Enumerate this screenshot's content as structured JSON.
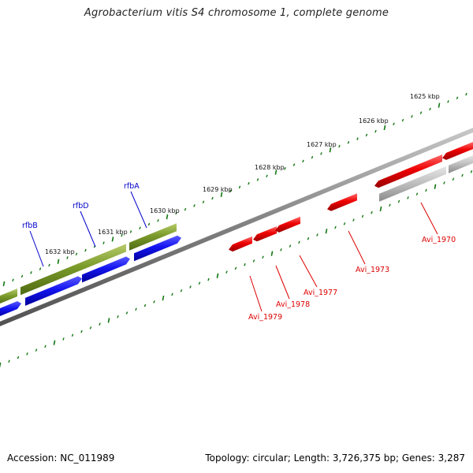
{
  "title": "Agrobacterium vitis S4 chromosome 1, complete genome",
  "accession": "Accession: NC_011989",
  "summary": "Topology: circular; Length: 3,726,375 bp; Genes: 3,287",
  "colors": {
    "forward_gene": "#6b8e23",
    "reverse_gene": "#1010ee",
    "red_gene": "#ee0000",
    "grey_gene": "#b8b8b8",
    "backbone": "#808080",
    "ticks": "#117711",
    "label_blue": "#0000cc",
    "label_red": "#dd0000"
  },
  "ticks": [
    {
      "label": "1625 kbp"
    },
    {
      "label": "1626 kbp"
    },
    {
      "label": "1627 kbp"
    },
    {
      "label": "1628 kbp"
    },
    {
      "label": "1629 kbp"
    },
    {
      "label": "1630 kbp"
    },
    {
      "label": "1631 kbp"
    },
    {
      "label": "1632 kbp"
    }
  ],
  "blue_labels": [
    {
      "name": "rfbA"
    },
    {
      "name": "rfbD"
    },
    {
      "name": "rfbB"
    }
  ],
  "red_labels": [
    {
      "name": "Avi_1970"
    },
    {
      "name": "Avi_1973"
    },
    {
      "name": "Avi_1977"
    },
    {
      "name": "Avi_1978"
    },
    {
      "name": "Avi_1979"
    }
  ]
}
